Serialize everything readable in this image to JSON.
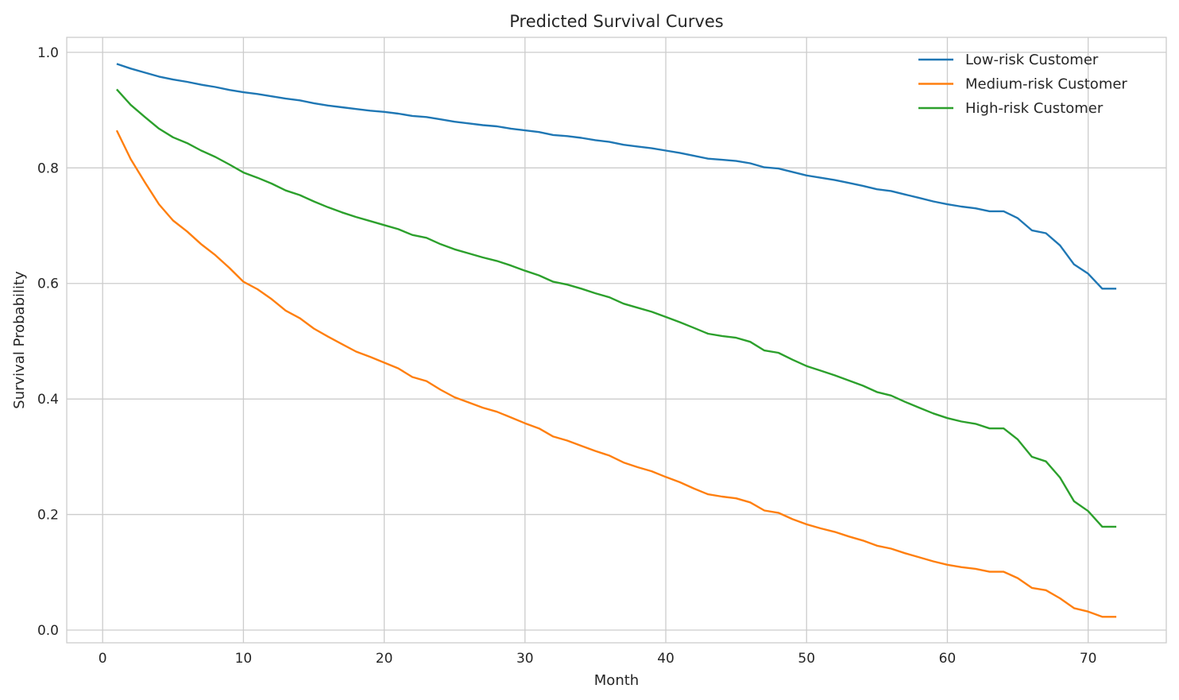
{
  "chart_data": {
    "type": "line",
    "title": "Predicted Survival Curves",
    "xlabel": "Month",
    "ylabel": "Survival Probability",
    "xlim": [
      -2.55,
      75.55
    ],
    "ylim": [
      -0.022,
      1.026
    ],
    "xticks": [
      0,
      10,
      20,
      30,
      40,
      50,
      60,
      70
    ],
    "yticks": [
      0.0,
      0.2,
      0.4,
      0.6,
      0.8,
      1.0
    ],
    "xtick_labels": [
      "0",
      "10",
      "20",
      "30",
      "40",
      "50",
      "60",
      "70"
    ],
    "ytick_labels": [
      "0.0",
      "0.2",
      "0.4",
      "0.6",
      "0.8",
      "1.0"
    ],
    "grid": true,
    "legend_position": "top-right",
    "x_start": 1,
    "series": [
      {
        "name": "Low-risk Customer",
        "color": "#1f77b4",
        "values": [
          0.98,
          0.972,
          0.965,
          0.958,
          0.953,
          0.949,
          0.944,
          0.94,
          0.935,
          0.931,
          0.928,
          0.924,
          0.92,
          0.917,
          0.912,
          0.908,
          0.905,
          0.902,
          0.899,
          0.897,
          0.894,
          0.89,
          0.888,
          0.884,
          0.88,
          0.877,
          0.874,
          0.872,
          0.868,
          0.865,
          0.862,
          0.857,
          0.855,
          0.852,
          0.848,
          0.845,
          0.84,
          0.837,
          0.834,
          0.83,
          0.826,
          0.821,
          0.816,
          0.814,
          0.812,
          0.808,
          0.801,
          0.799,
          0.793,
          0.787,
          0.783,
          0.779,
          0.774,
          0.769,
          0.763,
          0.76,
          0.754,
          0.748,
          0.742,
          0.737,
          0.733,
          0.73,
          0.725,
          0.725,
          0.713,
          0.692,
          0.687,
          0.666,
          0.633,
          0.617,
          0.591,
          0.591
        ]
      },
      {
        "name": "Medium-risk Customer",
        "color": "#ff7f0e",
        "values": [
          0.865,
          0.815,
          0.775,
          0.737,
          0.709,
          0.69,
          0.668,
          0.649,
          0.627,
          0.603,
          0.59,
          0.573,
          0.553,
          0.54,
          0.522,
          0.508,
          0.495,
          0.482,
          0.473,
          0.463,
          0.453,
          0.438,
          0.431,
          0.416,
          0.403,
          0.394,
          0.385,
          0.378,
          0.368,
          0.358,
          0.349,
          0.335,
          0.328,
          0.319,
          0.31,
          0.302,
          0.29,
          0.282,
          0.275,
          0.265,
          0.256,
          0.245,
          0.235,
          0.231,
          0.228,
          0.221,
          0.207,
          0.203,
          0.192,
          0.183,
          0.176,
          0.17,
          0.162,
          0.155,
          0.146,
          0.141,
          0.133,
          0.126,
          0.119,
          0.113,
          0.109,
          0.106,
          0.101,
          0.101,
          0.09,
          0.073,
          0.069,
          0.055,
          0.038,
          0.032,
          0.023,
          0.023
        ]
      },
      {
        "name": "High-risk Customer",
        "color": "#2ca02c",
        "values": [
          0.936,
          0.909,
          0.888,
          0.868,
          0.853,
          0.843,
          0.83,
          0.819,
          0.806,
          0.792,
          0.783,
          0.773,
          0.761,
          0.753,
          0.742,
          0.732,
          0.723,
          0.715,
          0.708,
          0.701,
          0.694,
          0.684,
          0.679,
          0.668,
          0.659,
          0.652,
          0.645,
          0.639,
          0.631,
          0.622,
          0.614,
          0.603,
          0.598,
          0.591,
          0.583,
          0.576,
          0.565,
          0.558,
          0.551,
          0.542,
          0.533,
          0.523,
          0.513,
          0.509,
          0.506,
          0.499,
          0.484,
          0.48,
          0.468,
          0.457,
          0.449,
          0.441,
          0.432,
          0.423,
          0.412,
          0.406,
          0.395,
          0.385,
          0.375,
          0.367,
          0.361,
          0.357,
          0.349,
          0.349,
          0.33,
          0.3,
          0.292,
          0.264,
          0.223,
          0.206,
          0.179,
          0.179
        ]
      }
    ]
  }
}
